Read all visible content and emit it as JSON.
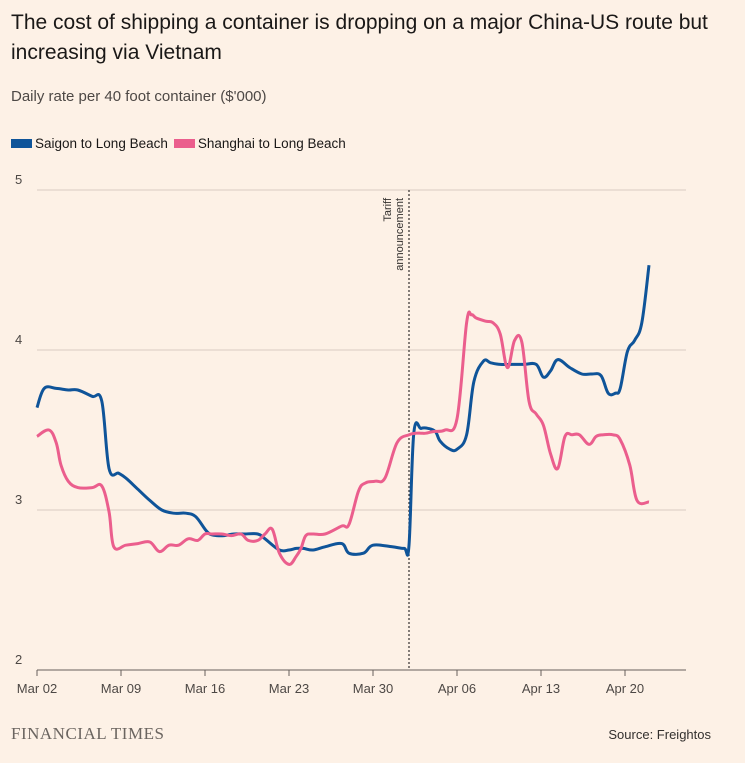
{
  "title": "The cost of shipping a container is dropping on a major China-US route but increasing via Vietnam",
  "subtitle": "Daily rate per 40 foot container ($'000)",
  "source": "Source: Freightos",
  "brand": "FINANCIAL TIMES",
  "colors": {
    "background": "#fdf1e6",
    "grid": "#d9ccc1",
    "saigon": "#0f5499",
    "shanghai": "#eb5e8d",
    "annotation": "#33302e"
  },
  "chart_data": {
    "type": "line",
    "title": "The cost of shipping a container is dropping on a major China-US route but increasing via Vietnam",
    "subtitle": "Daily rate per 40 foot container ($'000)",
    "xlabel": "",
    "ylabel": "",
    "ylim": [
      2,
      5
    ],
    "yticks": [
      2,
      3,
      4,
      5
    ],
    "xlim": [
      0,
      52.5
    ],
    "xticks": [
      {
        "x": 0,
        "label": "Mar 02"
      },
      {
        "x": 7,
        "label": "Mar 09"
      },
      {
        "x": 14,
        "label": "Mar 16"
      },
      {
        "x": 21,
        "label": "Mar 23"
      },
      {
        "x": 28,
        "label": "Mar 30"
      },
      {
        "x": 35,
        "label": "Apr 06"
      },
      {
        "x": 42,
        "label": "Apr 13"
      },
      {
        "x": 49,
        "label": "Apr 20"
      }
    ],
    "grid": true,
    "legend_position": "top-left",
    "annotation": {
      "x": 31,
      "lines": [
        "Tariff",
        "announcement"
      ]
    },
    "series": [
      {
        "name": "Saigon to Long Beach",
        "color": "#0f5499",
        "x": [
          0,
          0.6,
          1.6,
          2.6,
          3.4,
          4.6,
          5.4,
          6.0,
          6.8,
          7.4,
          8.4,
          9.4,
          10.4,
          11.4,
          12.4,
          13.2,
          14.0,
          14.4,
          15.0,
          15.6,
          16.4,
          17.2,
          18.4,
          19.0,
          20.2,
          21.0,
          21.6,
          22.2,
          23.0,
          24.0,
          25.4,
          26.0,
          27.2,
          28.0,
          29.6,
          30.6,
          31.0,
          31.4,
          32.0,
          32.6,
          33.2,
          33.6,
          34.4,
          35.0,
          35.8,
          36.4,
          37.2,
          37.8,
          38.6,
          39.6,
          40.6,
          41.6,
          42.2,
          42.8,
          43.4,
          44.4,
          45.4,
          46.2,
          47.0,
          47.6,
          48.2,
          48.6,
          49.2,
          49.8,
          50.4,
          51.0
        ],
        "values": [
          3.64,
          3.76,
          3.76,
          3.75,
          3.75,
          3.71,
          3.68,
          3.26,
          3.23,
          3.2,
          3.13,
          3.06,
          3.0,
          2.98,
          2.98,
          2.96,
          2.88,
          2.85,
          2.84,
          2.84,
          2.85,
          2.85,
          2.85,
          2.82,
          2.75,
          2.75,
          2.76,
          2.76,
          2.75,
          2.77,
          2.79,
          2.73,
          2.73,
          2.78,
          2.77,
          2.76,
          2.78,
          3.48,
          3.51,
          3.51,
          3.49,
          3.43,
          3.38,
          3.38,
          3.47,
          3.8,
          3.93,
          3.92,
          3.91,
          3.91,
          3.91,
          3.91,
          3.83,
          3.87,
          3.94,
          3.89,
          3.85,
          3.85,
          3.84,
          3.73,
          3.73,
          3.76,
          3.99,
          4.06,
          4.17,
          4.53
        ]
      },
      {
        "name": "Shanghai to Long Beach",
        "color": "#eb5e8d",
        "x": [
          0,
          1.0,
          1.6,
          2.0,
          2.6,
          3.4,
          4.6,
          5.4,
          6.0,
          6.4,
          7.4,
          8.4,
          9.4,
          10.2,
          11.0,
          11.8,
          12.6,
          13.4,
          14.0,
          14.6,
          15.4,
          16.2,
          17.0,
          17.6,
          18.4,
          19.0,
          19.6,
          20.2,
          21.0,
          21.6,
          22.0,
          22.4,
          23.0,
          24.0,
          25.4,
          26.0,
          26.8,
          27.4,
          28.2,
          29.0,
          30.0,
          31.0,
          31.6,
          32.0,
          32.4,
          33.0,
          34.0,
          35.0,
          35.8,
          36.2,
          36.6,
          37.4,
          38.0,
          38.6,
          39.2,
          39.8,
          40.4,
          41.0,
          41.6,
          42.2,
          42.8,
          43.4,
          44.0,
          44.6,
          45.2,
          46.0,
          46.6,
          47.2,
          48.0,
          48.6,
          49.4,
          50.0,
          51.0
        ],
        "values": [
          3.46,
          3.5,
          3.42,
          3.28,
          3.18,
          3.14,
          3.14,
          3.15,
          2.99,
          2.77,
          2.78,
          2.79,
          2.8,
          2.74,
          2.78,
          2.78,
          2.82,
          2.81,
          2.85,
          2.85,
          2.85,
          2.84,
          2.85,
          2.81,
          2.81,
          2.85,
          2.88,
          2.73,
          2.66,
          2.71,
          2.76,
          2.84,
          2.85,
          2.85,
          2.9,
          2.91,
          3.12,
          3.17,
          3.18,
          3.2,
          3.42,
          3.47,
          3.48,
          3.48,
          3.48,
          3.49,
          3.5,
          3.57,
          4.17,
          4.22,
          4.2,
          4.18,
          4.17,
          4.1,
          3.89,
          4.06,
          4.05,
          3.68,
          3.6,
          3.53,
          3.35,
          3.26,
          3.46,
          3.47,
          3.47,
          3.41,
          3.46,
          3.47,
          3.47,
          3.44,
          3.28,
          3.06,
          3.05
        ]
      }
    ]
  }
}
